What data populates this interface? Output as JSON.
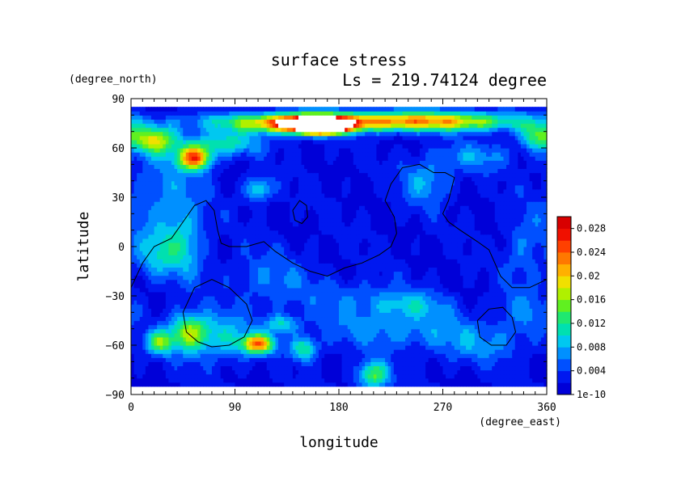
{
  "chart_data": {
    "type": "heatmap",
    "title": "surface stress",
    "subtitle": "Ls = 219.74124 degree",
    "xlabel": "longitude",
    "ylabel": "latitude",
    "x_unit": "(degree_east)",
    "y_unit": "(degree_north)",
    "xlim": [
      0,
      360
    ],
    "ylim": [
      -90,
      90
    ],
    "x_ticks": [
      0,
      90,
      180,
      270,
      360
    ],
    "y_ticks": [
      -90,
      -60,
      -30,
      0,
      30,
      60,
      90
    ],
    "x_tick_labels": [
      "0",
      "90",
      "180",
      "270",
      "360"
    ],
    "y_tick_labels": [
      "−90",
      "−60",
      "−30",
      "0",
      "30",
      "60",
      "90"
    ],
    "data_lat_range": [
      -85,
      85
    ],
    "colorbar": {
      "min": 0,
      "max": 0.03,
      "tick_labels": [
        "1e-10",
        "0.004",
        "0.008",
        "0.012",
        "0.016",
        "0.02",
        "0.024",
        "0.028"
      ],
      "tick_values": [
        0,
        0.004,
        0.008,
        0.012,
        0.016,
        0.02,
        0.024,
        0.028
      ],
      "colors": [
        "#0000d8",
        "#0018f0",
        "#0050ff",
        "#0090ff",
        "#00c8f0",
        "#00e0b0",
        "#20e870",
        "#60f020",
        "#b0f000",
        "#f0e000",
        "#ffb000",
        "#ff7800",
        "#ff4000",
        "#f01000",
        "#d80000"
      ],
      "saturation_color": "#ffffff"
    },
    "background_level": 0.002,
    "features": [
      {
        "lon": 180,
        "lat": 76,
        "sx": 75,
        "sy": 4,
        "v": 0.014
      },
      {
        "lon": 140,
        "lat": 75,
        "sx": 35,
        "sy": 4,
        "v": 0.012
      },
      {
        "lon": 245,
        "lat": 77,
        "sx": 45,
        "sy": 4,
        "v": 0.009
      },
      {
        "lon": 300,
        "lat": 76,
        "sx": 35,
        "sy": 4,
        "v": 0.007
      },
      {
        "lon": 160,
        "lat": 74,
        "sx": 18,
        "sy": 3.5,
        "v": 0.026
      },
      {
        "lon": 170,
        "lat": 73,
        "sx": 10,
        "sy": 2.5,
        "v": 0.02
      },
      {
        "lon": 20,
        "lat": 65,
        "sx": 14,
        "sy": 6,
        "v": 0.015
      },
      {
        "lon": 55,
        "lat": 54,
        "sx": 10,
        "sy": 5,
        "v": 0.022
      },
      {
        "lon": 80,
        "lat": 63,
        "sx": 22,
        "sy": 5,
        "v": 0.009
      },
      {
        "lon": 350,
        "lat": 68,
        "sx": 10,
        "sy": 6,
        "v": 0.01
      },
      {
        "lon": 30,
        "lat": 30,
        "sx": 22,
        "sy": 20,
        "v": 0.005
      },
      {
        "lon": 110,
        "lat": 35,
        "sx": 8,
        "sy": 5,
        "v": 0.009
      },
      {
        "lon": 255,
        "lat": 40,
        "sx": 15,
        "sy": 10,
        "v": 0.006
      },
      {
        "lon": 300,
        "lat": 55,
        "sx": 22,
        "sy": 6,
        "v": 0.005
      },
      {
        "lon": 45,
        "lat": 0,
        "sx": 12,
        "sy": 14,
        "v": 0.007
      },
      {
        "lon": 20,
        "lat": -5,
        "sx": 12,
        "sy": 10,
        "v": 0.006
      },
      {
        "lon": 120,
        "lat": -20,
        "sx": 25,
        "sy": 12,
        "v": 0.004
      },
      {
        "lon": 50,
        "lat": -52,
        "sx": 12,
        "sy": 8,
        "v": 0.014
      },
      {
        "lon": 25,
        "lat": -58,
        "sx": 8,
        "sy": 5,
        "v": 0.012
      },
      {
        "lon": 80,
        "lat": -55,
        "sx": 18,
        "sy": 10,
        "v": 0.007
      },
      {
        "lon": 110,
        "lat": -59,
        "sx": 10,
        "sy": 4,
        "v": 0.02
      },
      {
        "lon": 130,
        "lat": -47,
        "sx": 10,
        "sy": 4,
        "v": 0.008
      },
      {
        "lon": 150,
        "lat": -62,
        "sx": 8,
        "sy": 5,
        "v": 0.01
      },
      {
        "lon": 210,
        "lat": -78,
        "sx": 10,
        "sy": 6,
        "v": 0.012
      },
      {
        "lon": 230,
        "lat": -50,
        "sx": 50,
        "sy": 8,
        "v": 0.005
      },
      {
        "lon": 240,
        "lat": -35,
        "sx": 25,
        "sy": 6,
        "v": 0.006
      },
      {
        "lon": 300,
        "lat": -60,
        "sx": 30,
        "sy": 8,
        "v": 0.004
      },
      {
        "lon": 340,
        "lat": -40,
        "sx": 15,
        "sy": 10,
        "v": 0.004
      },
      {
        "lon": 190,
        "lat": -30,
        "sx": 30,
        "sy": 8,
        "v": 0.003
      },
      {
        "lon": 340,
        "lat": 0,
        "sx": 12,
        "sy": 15,
        "v": 0.004
      }
    ],
    "contours": [
      [
        [
          0,
          -25
        ],
        [
          10,
          -10
        ],
        [
          20,
          0
        ],
        [
          35,
          5
        ],
        [
          45,
          15
        ],
        [
          55,
          25
        ],
        [
          65,
          28
        ],
        [
          72,
          22
        ],
        [
          75,
          10
        ],
        [
          78,
          2
        ],
        [
          85,
          0
        ],
        [
          100,
          0
        ],
        [
          115,
          3
        ],
        [
          125,
          -3
        ],
        [
          140,
          -10
        ],
        [
          155,
          -15
        ],
        [
          170,
          -18
        ],
        [
          185,
          -13
        ],
        [
          200,
          -10
        ],
        [
          215,
          -5
        ],
        [
          225,
          0
        ],
        [
          230,
          8
        ],
        [
          228,
          18
        ],
        [
          220,
          28
        ],
        [
          225,
          38
        ],
        [
          235,
          48
        ],
        [
          250,
          50
        ],
        [
          262,
          45
        ],
        [
          272,
          45
        ],
        [
          280,
          42
        ],
        [
          275,
          28
        ],
        [
          270,
          20
        ],
        [
          275,
          15
        ],
        [
          285,
          10
        ],
        [
          300,
          3
        ],
        [
          310,
          -2
        ],
        [
          315,
          -10
        ],
        [
          320,
          -18
        ],
        [
          330,
          -25
        ],
        [
          345,
          -25
        ],
        [
          360,
          -20
        ]
      ],
      [
        [
          45,
          -40
        ],
        [
          55,
          -25
        ],
        [
          70,
          -20
        ],
        [
          85,
          -25
        ],
        [
          100,
          -35
        ],
        [
          105,
          -45
        ],
        [
          98,
          -55
        ],
        [
          85,
          -60
        ],
        [
          70,
          -61
        ],
        [
          58,
          -58
        ],
        [
          48,
          -52
        ],
        [
          45,
          -40
        ]
      ],
      [
        [
          300,
          -45
        ],
        [
          310,
          -38
        ],
        [
          322,
          -37
        ],
        [
          330,
          -43
        ],
        [
          333,
          -52
        ],
        [
          325,
          -60
        ],
        [
          312,
          -60
        ],
        [
          302,
          -55
        ],
        [
          300,
          -45
        ]
      ],
      [
        [
          140,
          22
        ],
        [
          146,
          28
        ],
        [
          152,
          25
        ],
        [
          153,
          18
        ],
        [
          148,
          14
        ],
        [
          142,
          16
        ],
        [
          140,
          22
        ]
      ]
    ]
  }
}
